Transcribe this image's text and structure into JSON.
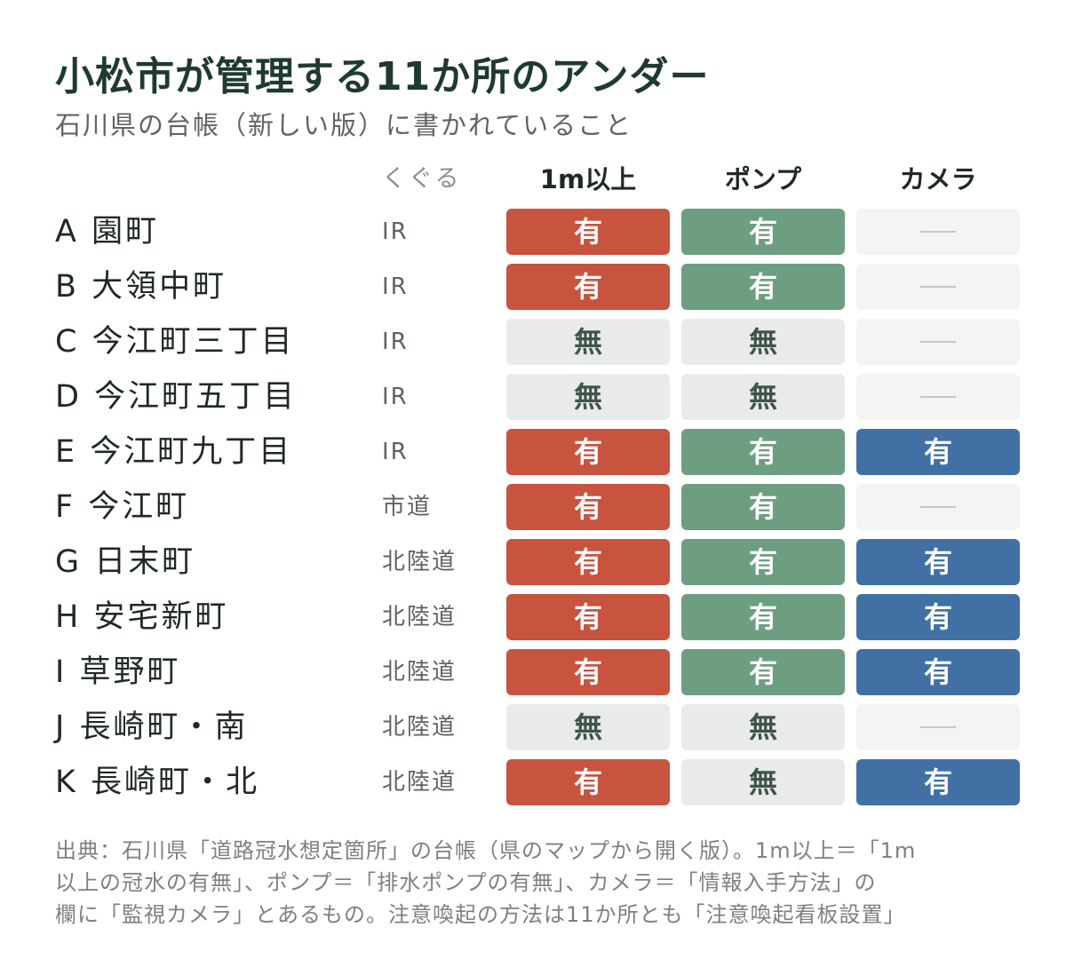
{
  "title": "小松市が管理する11か所のアンダー",
  "subtitle": "石川県の台帳（新しい版）に書かれていること",
  "columns": {
    "pass": "くぐる",
    "depth": "1m以上",
    "pump": "ポンプ",
    "camera": "カメラ"
  },
  "colors": {
    "depth_yes": "#c8533e",
    "pump_yes": "#6e9e82",
    "camera_yes": "#4170a5",
    "no": "#e9ebe9",
    "none": "#f3f4f3"
  },
  "rows": [
    {
      "name": "A 園町",
      "pass": "IR",
      "depth": "有",
      "pump": "有",
      "camera": "—"
    },
    {
      "name": "B 大領中町",
      "pass": "IR",
      "depth": "有",
      "pump": "有",
      "camera": "—"
    },
    {
      "name": "C 今江町三丁目",
      "pass": "IR",
      "depth": "無",
      "pump": "無",
      "camera": "—"
    },
    {
      "name": "D 今江町五丁目",
      "pass": "IR",
      "depth": "無",
      "pump": "無",
      "camera": "—"
    },
    {
      "name": "E 今江町九丁目",
      "pass": "IR",
      "depth": "有",
      "pump": "有",
      "camera": "有"
    },
    {
      "name": "F 今江町",
      "pass": "市道",
      "depth": "有",
      "pump": "有",
      "camera": "—"
    },
    {
      "name": "G 日末町",
      "pass": "北陸道",
      "depth": "有",
      "pump": "有",
      "camera": "有"
    },
    {
      "name": "H 安宅新町",
      "pass": "北陸道",
      "depth": "有",
      "pump": "有",
      "camera": "有"
    },
    {
      "name": "I 草野町",
      "pass": "北陸道",
      "depth": "有",
      "pump": "有",
      "camera": "有"
    },
    {
      "name": "J 長崎町・南",
      "pass": "北陸道",
      "depth": "無",
      "pump": "無",
      "camera": "—"
    },
    {
      "name": "K 長崎町・北",
      "pass": "北陸道",
      "depth": "有",
      "pump": "無",
      "camera": "有"
    }
  ],
  "footnote": [
    "出典：石川県「道路冠水想定箇所」の台帳（県のマップから開く版）。1m以上＝「1m",
    "以上の冠水の有無」、ポンプ＝「排水ポンプの有無」、カメラ＝「情報入手方法」の",
    "欄に「監視カメラ」とあるもの。注意喚起の方法は11か所とも「注意喚起看板設置」"
  ]
}
